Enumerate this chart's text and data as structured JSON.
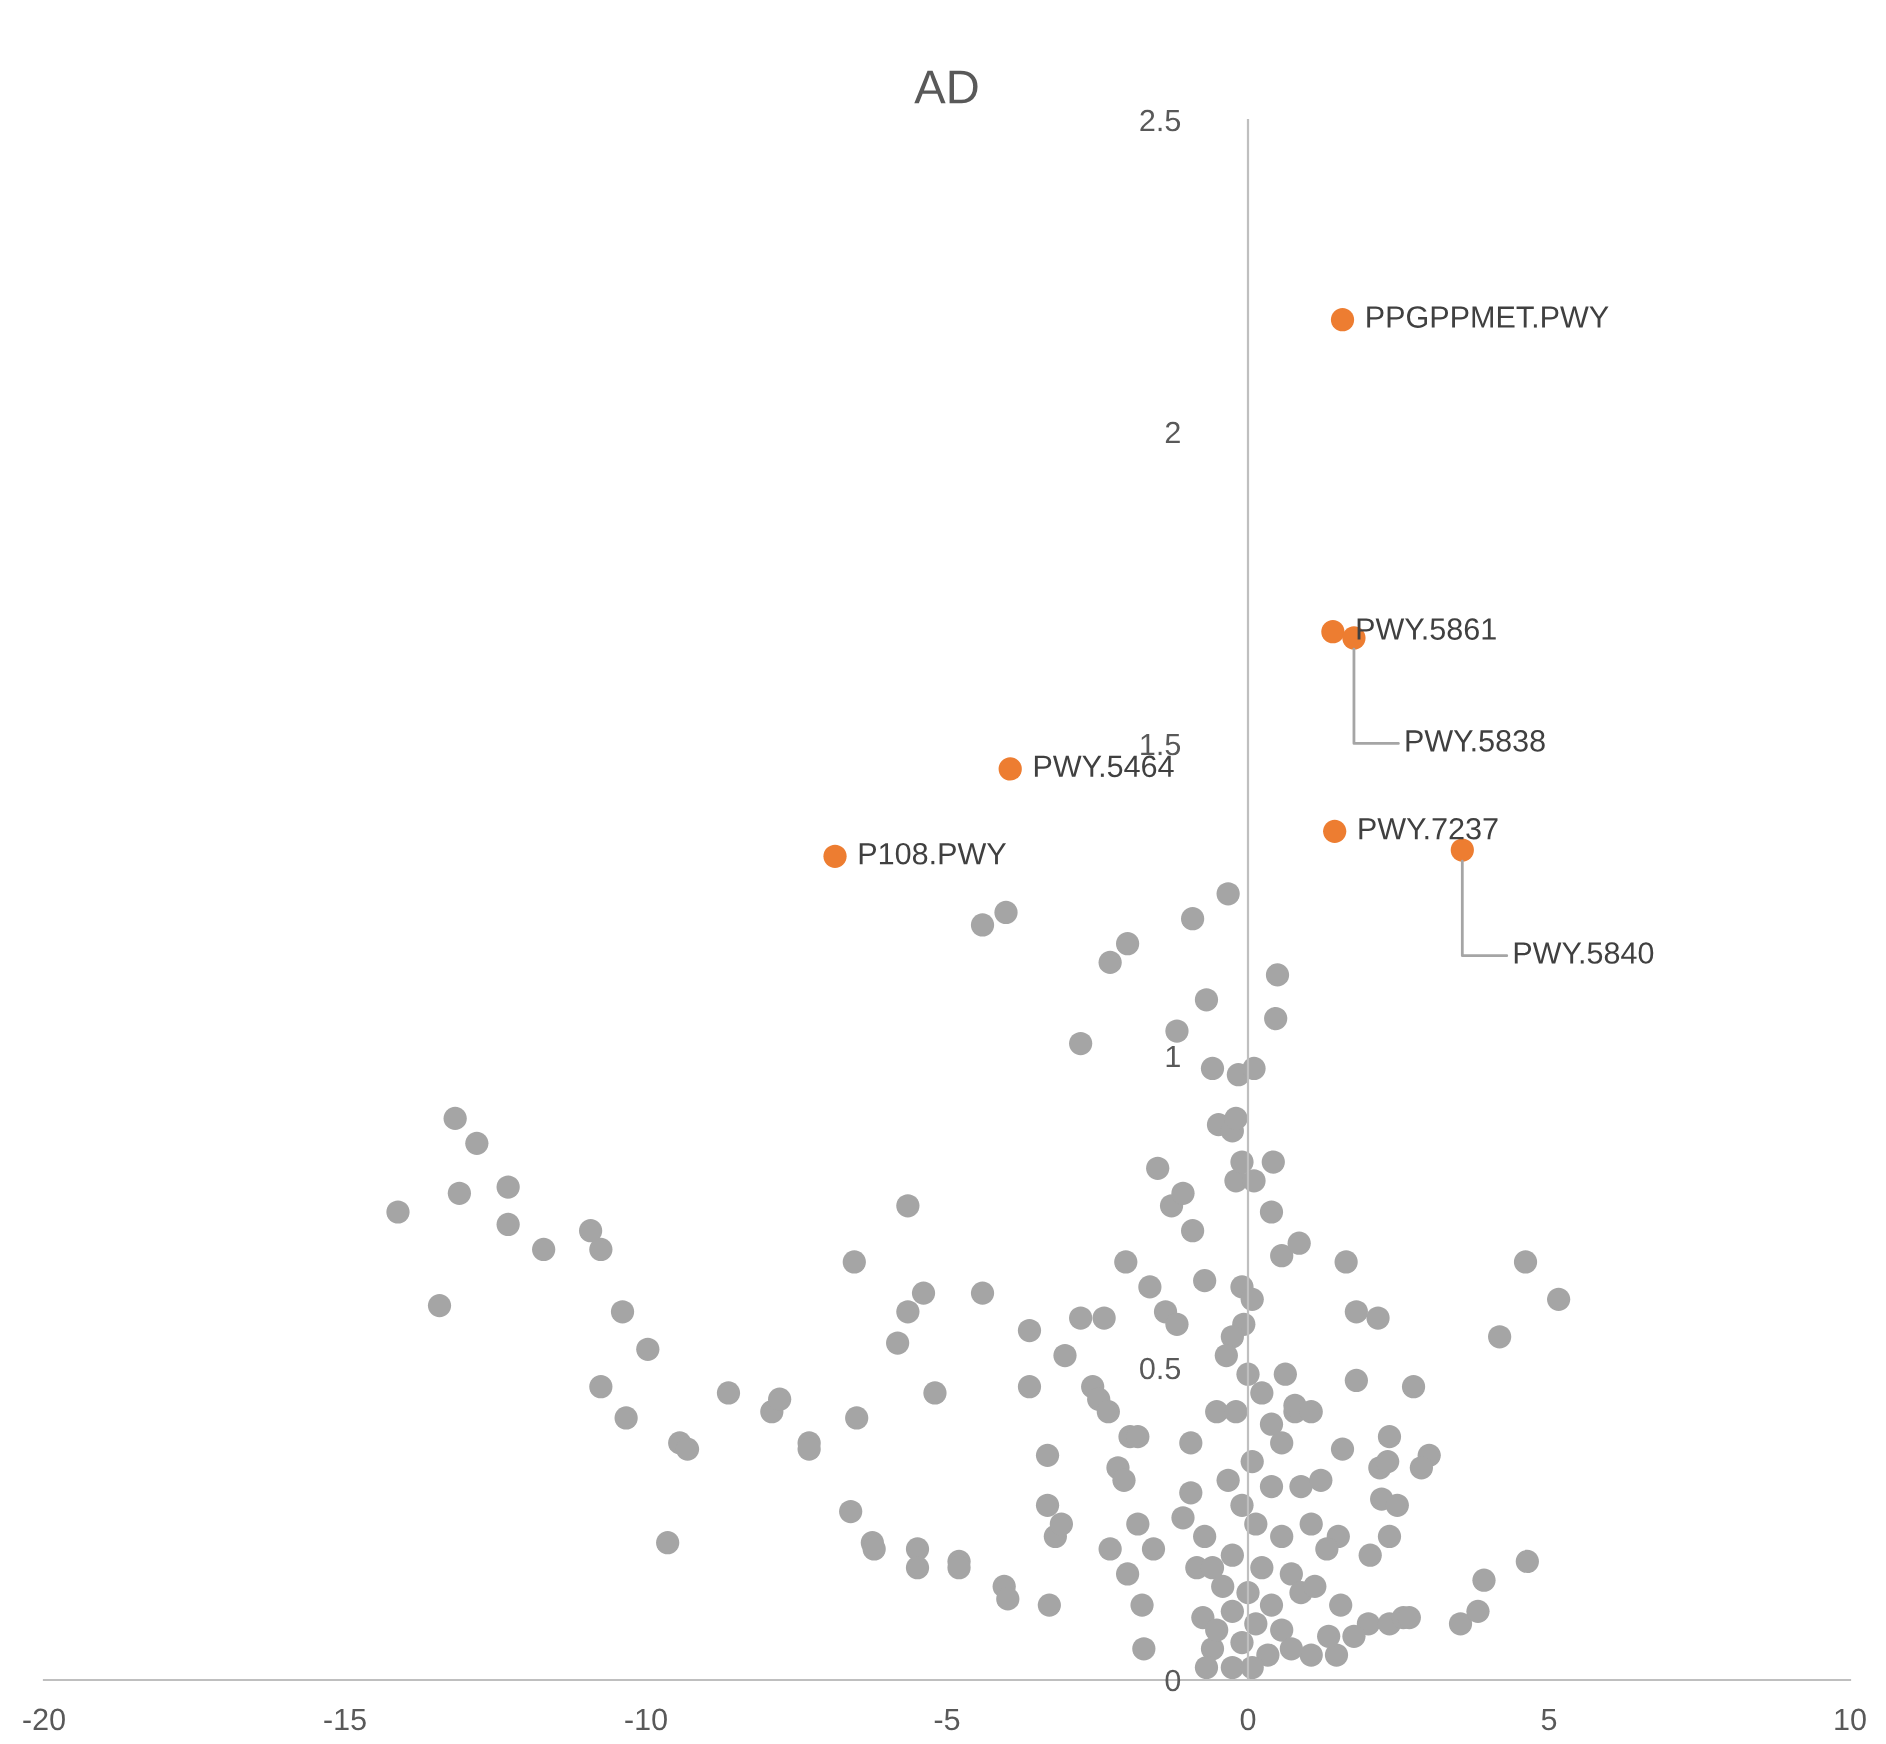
{
  "chart_data": {
    "type": "scatter",
    "title": "AD",
    "xlim": [
      -20,
      10
    ],
    "ylim": [
      0,
      2.5
    ],
    "xticks": [
      -20,
      -15,
      -10,
      -5,
      0,
      5,
      10
    ],
    "yticks": [
      0,
      0.5,
      1,
      1.5,
      2,
      2.5
    ],
    "grid": false,
    "legend": false,
    "marker": "circle",
    "series": [
      {
        "color": "#a5a5a5",
        "x": [
          -14.12,
          -13.43,
          -13.17,
          -13.1,
          -12.81,
          -12.29,
          -12.29,
          -11.7,
          -10.92,
          -10.75,
          -10.39,
          -10.75,
          -10.33,
          -9.97,
          -9.64,
          -9.44,
          -9.31,
          -8.63,
          -7.91,
          -7.78,
          -7.29,
          -7.29,
          -6.54,
          -6.5,
          -6.6,
          -6.24,
          -6.21,
          -5.65,
          -5.65,
          -5.39,
          -5.82,
          -5.2,
          -5.49,
          -5.49,
          -4.8,
          -4.8,
          -4.05,
          -3.99,
          -4.41,
          -4.41,
          -4.02,
          -3.63,
          -3.63,
          -3.33,
          -3.3,
          -3.2,
          -3.1,
          -3.04,
          -3.33,
          -2.78,
          -2.78,
          -2.58,
          -2.48,
          -2.32,
          -2.39,
          -2.29,
          -2.16,
          -2.06,
          -1.96,
          -1.83,
          -1.83,
          -2.0,
          -1.76,
          -1.57,
          -1.73,
          -2.29,
          -2.0,
          -2.03,
          -1.63,
          -1.5,
          -1.37,
          -1.18,
          -1.27,
          -1.08,
          -1.18,
          -0.92,
          -0.92,
          -0.72,
          -0.69,
          -0.59,
          -0.49,
          -0.33,
          -0.95,
          -0.95,
          -1.08,
          -0.85,
          -0.72,
          -0.59,
          -0.75,
          -0.59,
          -0.52,
          -0.26,
          -0.2,
          -0.16,
          0.1,
          -0.2,
          -0.1,
          0.1,
          0.49,
          0.46,
          0.42,
          0.39,
          0.56,
          0.85,
          1.63,
          1.8,
          2.16,
          1.8,
          2.19,
          2.75,
          3.01,
          2.88,
          2.35,
          2.32,
          2.22,
          2.48,
          1.57,
          1.5,
          2.03,
          2.35,
          2.0,
          2.35,
          2.58,
          2.68,
          1.76,
          1.47,
          1.05,
          1.34,
          1.54,
          3.53,
          3.82,
          3.92,
          4.64,
          4.61,
          5.16,
          4.18,
          -0.1,
          0.07,
          -0.07,
          -0.26,
          -0.36,
          0.0,
          0.23,
          -0.2,
          0.39,
          0.56,
          0.78,
          0.07,
          -0.33,
          0.39,
          0.88,
          1.21,
          -0.1,
          0.13,
          0.56,
          1.05,
          -0.26,
          0.23,
          0.72,
          -0.42,
          0.0,
          0.39,
          0.88,
          -0.26,
          0.13,
          0.56,
          -0.52,
          -0.1,
          0.33,
          -0.26,
          0.07,
          -0.69,
          0.72,
          1.11,
          1.31,
          0.62,
          0.78,
          1.05
        ],
        "values": [
          0.75,
          0.6,
          0.9,
          0.78,
          0.86,
          0.79,
          0.73,
          0.69,
          0.72,
          0.69,
          0.59,
          0.47,
          0.42,
          0.53,
          0.22,
          0.38,
          0.37,
          0.46,
          0.43,
          0.45,
          0.38,
          0.37,
          0.67,
          0.42,
          0.27,
          0.22,
          0.21,
          0.76,
          0.59,
          0.62,
          0.54,
          0.46,
          0.21,
          0.18,
          0.19,
          0.18,
          0.15,
          0.13,
          0.62,
          1.21,
          1.23,
          0.56,
          0.47,
          0.28,
          0.12,
          0.23,
          0.25,
          0.52,
          0.36,
          1.02,
          0.58,
          0.47,
          0.45,
          0.43,
          0.58,
          0.21,
          0.34,
          0.32,
          0.39,
          0.39,
          0.25,
          0.17,
          0.12,
          0.21,
          0.05,
          1.15,
          1.18,
          0.67,
          0.63,
          0.82,
          0.59,
          1.04,
          0.76,
          0.78,
          0.57,
          0.72,
          1.22,
          0.64,
          1.09,
          0.98,
          0.89,
          1.26,
          0.38,
          0.3,
          0.26,
          0.18,
          0.23,
          0.18,
          0.1,
          0.05,
          0.43,
          0.88,
          0.9,
          0.97,
          0.98,
          0.8,
          0.83,
          0.8,
          1.13,
          1.06,
          0.83,
          0.75,
          0.68,
          0.7,
          0.67,
          0.59,
          0.58,
          0.48,
          0.34,
          0.47,
          0.36,
          0.34,
          0.39,
          0.35,
          0.29,
          0.28,
          0.37,
          0.23,
          0.2,
          0.23,
          0.09,
          0.09,
          0.1,
          0.1,
          0.07,
          0.04,
          0.04,
          0.07,
          0.12,
          0.09,
          0.11,
          0.16,
          0.19,
          0.67,
          0.61,
          0.55,
          0.63,
          0.61,
          0.57,
          0.55,
          0.52,
          0.49,
          0.46,
          0.43,
          0.41,
          0.38,
          0.43,
          0.35,
          0.32,
          0.31,
          0.31,
          0.32,
          0.28,
          0.25,
          0.23,
          0.25,
          0.2,
          0.18,
          0.17,
          0.15,
          0.14,
          0.12,
          0.14,
          0.11,
          0.09,
          0.08,
          0.08,
          0.06,
          0.04,
          0.02,
          0.02,
          0.02,
          0.05,
          0.15,
          0.21,
          0.49,
          0.44,
          0.43
        ]
      },
      {
        "color": "#ed7d31",
        "x": [
          1.57,
          1.41,
          1.76,
          -3.95,
          -6.86,
          1.44,
          3.56
        ],
        "values": [
          2.18,
          1.68,
          1.67,
          1.46,
          1.32,
          1.36,
          1.33
        ]
      }
    ],
    "annotations": [
      {
        "text": "PPGPPMET.PWY",
        "x": 1.57,
        "y": 2.18
      },
      {
        "text": "PWY.5861",
        "x": 1.41,
        "y": 1.68
      },
      {
        "text": "PWY.5838",
        "x": 1.76,
        "y": 1.67
      },
      {
        "text": "PWY.5464",
        "x": -3.95,
        "y": 1.46
      },
      {
        "text": "P108.PWY",
        "x": -6.86,
        "y": 1.32
      },
      {
        "text": "PWY.7237",
        "x": 1.44,
        "y": 1.36
      },
      {
        "text": "PWY.5840",
        "x": 3.56,
        "y": 1.33
      }
    ]
  }
}
